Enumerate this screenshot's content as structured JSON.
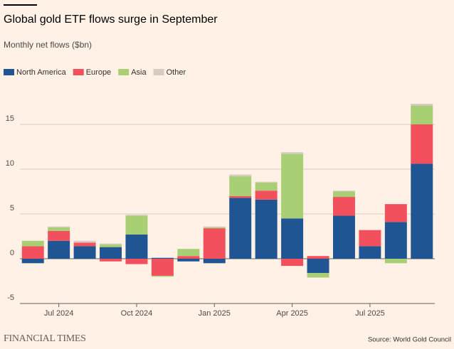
{
  "chart_data": {
    "type": "stacked_bar",
    "title": "Global gold ETF flows surge in September",
    "subtitle": "Monthly net flows ($bn)",
    "source": "Source: World Gold Council",
    "publisher": "FINANCIAL TIMES",
    "categories": [
      null,
      "Jul 2024",
      null,
      null,
      "Oct 2024",
      null,
      null,
      "Jan 2025",
      null,
      null,
      "Apr 2025",
      null,
      null,
      "Jul 2025",
      null,
      null
    ],
    "series": [
      {
        "name": "North America",
        "color": "#1f5592",
        "values": [
          -0.5,
          2.0,
          1.4,
          1.3,
          2.7,
          0.1,
          -0.3,
          -0.5,
          6.8,
          6.6,
          4.5,
          -1.6,
          4.8,
          1.4,
          4.1,
          10.6
        ]
      },
      {
        "name": "Europe",
        "color": "#f2505c",
        "values": [
          1.4,
          1.1,
          0.4,
          -0.3,
          -0.6,
          -1.9,
          0.3,
          3.4,
          0.2,
          1.0,
          -0.8,
          0.3,
          2.1,
          1.8,
          2.0,
          4.4
        ]
      },
      {
        "name": "Asia",
        "color": "#a9cf75",
        "values": [
          0.6,
          0.4,
          0.0,
          0.3,
          2.1,
          -0.1,
          0.8,
          0.1,
          2.2,
          0.9,
          7.2,
          -0.5,
          0.6,
          0.0,
          -0.5,
          2.1
        ]
      },
      {
        "name": "Other",
        "color": "#d7cbc2",
        "values": [
          0.0,
          0.1,
          0.2,
          0.1,
          0.1,
          0.0,
          0.0,
          0.1,
          0.2,
          0.1,
          0.2,
          0.0,
          0.1,
          -0.1,
          0.0,
          0.2
        ]
      }
    ],
    "ylim": [
      -5,
      18
    ],
    "yticks": [
      -5,
      0,
      5,
      10,
      15
    ],
    "grid": true,
    "legend": "top-left"
  }
}
